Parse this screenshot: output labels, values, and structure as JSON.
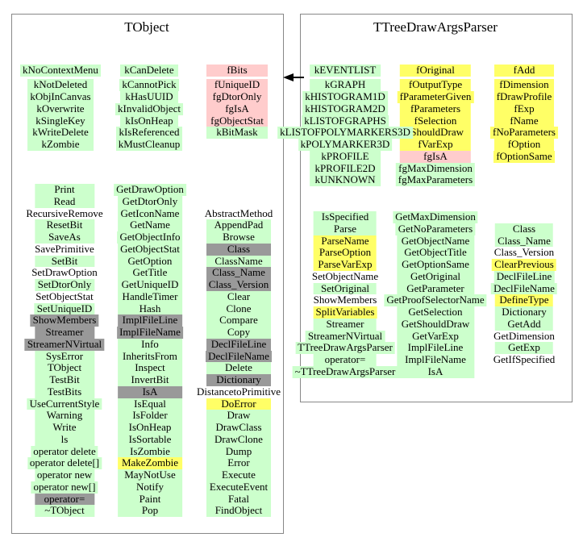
{
  "colors": {
    "green": "#ccffcc",
    "yellow": "#ffff66",
    "pink": "#ffcccc",
    "gray": "#999999",
    "none": "transparent"
  },
  "classes": [
    {
      "title": "TObject",
      "columns": [
        {
          "name": "enum-constants-1",
          "items": [
            [
              "kNoContextMenu",
              "green"
            ],
            [
              "kNotDeleted",
              "green"
            ],
            [
              "kObjInCanvas",
              "green"
            ],
            [
              "kOverwrite",
              "green"
            ],
            [
              "kSingleKey",
              "green"
            ],
            [
              "kWriteDelete",
              "green"
            ],
            [
              "kZombie",
              "green"
            ]
          ]
        },
        {
          "name": "enum-constants-2",
          "items": [
            [
              "kCanDelete",
              "green"
            ],
            [
              "kCannotPick",
              "green"
            ],
            [
              "kHasUUID",
              "green"
            ],
            [
              "kInvalidObject",
              "green"
            ],
            [
              "kIsOnHeap",
              "green"
            ],
            [
              "kIsReferenced",
              "green"
            ],
            [
              "kMustCleanup",
              "green"
            ]
          ]
        },
        {
          "name": "data-members",
          "items": [
            [
              "fBits",
              "pink"
            ],
            [
              "fUniqueID",
              "pink"
            ],
            [
              "fgDtorOnly",
              "pink"
            ],
            [
              "fgIsA",
              "pink"
            ],
            [
              "fgObjectStat",
              "pink"
            ],
            [
              "kBitMask",
              "green"
            ]
          ]
        },
        {
          "name": "methods-1",
          "items": [
            [
              "Print",
              "green"
            ],
            [
              "Read",
              "green"
            ],
            [
              "RecursiveRemove",
              "none"
            ],
            [
              "ResetBit",
              "green"
            ],
            [
              "SaveAs",
              "green"
            ],
            [
              "SavePrimitive",
              "none"
            ],
            [
              "SetBit",
              "green"
            ],
            [
              "SetDrawOption",
              "none"
            ],
            [
              "SetDtorOnly",
              "green"
            ],
            [
              "SetObjectStat",
              "none"
            ],
            [
              "SetUniqueID",
              "green"
            ],
            [
              "ShowMembers",
              "gray"
            ],
            [
              "Streamer",
              "gray"
            ],
            [
              "StreamerNVirtual",
              "gray"
            ],
            [
              "SysError",
              "green"
            ],
            [
              "TObject",
              "green"
            ],
            [
              "TestBit",
              "green"
            ],
            [
              "TestBits",
              "green"
            ],
            [
              "UseCurrentStyle",
              "green"
            ],
            [
              "Warning",
              "green"
            ],
            [
              "Write",
              "green"
            ],
            [
              "ls",
              "green"
            ],
            [
              "operator delete",
              "green"
            ],
            [
              "operator delete[]",
              "green"
            ],
            [
              "operator new",
              "green"
            ],
            [
              "operator new[]",
              "green"
            ],
            [
              "operator=",
              "gray"
            ],
            [
              "~TObject",
              "green"
            ]
          ]
        },
        {
          "name": "methods-2",
          "items": [
            [
              "GetDrawOption",
              "green"
            ],
            [
              "GetDtorOnly",
              "green"
            ],
            [
              "GetIconName",
              "green"
            ],
            [
              "GetName",
              "green"
            ],
            [
              "GetObjectInfo",
              "green"
            ],
            [
              "GetObjectStat",
              "green"
            ],
            [
              "GetOption",
              "green"
            ],
            [
              "GetTitle",
              "green"
            ],
            [
              "GetUniqueID",
              "green"
            ],
            [
              "HandleTimer",
              "green"
            ],
            [
              "Hash",
              "green"
            ],
            [
              "ImplFileLine",
              "gray"
            ],
            [
              "ImplFileName",
              "gray"
            ],
            [
              "Info",
              "green"
            ],
            [
              "InheritsFrom",
              "green"
            ],
            [
              "Inspect",
              "green"
            ],
            [
              "InvertBit",
              "green"
            ],
            [
              "IsA",
              "gray"
            ],
            [
              "IsEqual",
              "green"
            ],
            [
              "IsFolder",
              "green"
            ],
            [
              "IsOnHeap",
              "green"
            ],
            [
              "IsSortable",
              "green"
            ],
            [
              "IsZombie",
              "green"
            ],
            [
              "MakeZombie",
              "yellow"
            ],
            [
              "MayNotUse",
              "green"
            ],
            [
              "Notify",
              "green"
            ],
            [
              "Paint",
              "green"
            ],
            [
              "Pop",
              "green"
            ]
          ]
        },
        {
          "name": "methods-3",
          "items": [
            [
              "AbstractMethod",
              "none"
            ],
            [
              "AppendPad",
              "green"
            ],
            [
              "Browse",
              "green"
            ],
            [
              "Class",
              "gray"
            ],
            [
              "ClassName",
              "green"
            ],
            [
              "Class_Name",
              "gray"
            ],
            [
              "Class_Version",
              "gray"
            ],
            [
              "Clear",
              "green"
            ],
            [
              "Clone",
              "green"
            ],
            [
              "Compare",
              "green"
            ],
            [
              "Copy",
              "green"
            ],
            [
              "DeclFileLine",
              "gray"
            ],
            [
              "DeclFileName",
              "gray"
            ],
            [
              "Delete",
              "green"
            ],
            [
              "Dictionary",
              "gray"
            ],
            [
              "DistancetoPrimitive",
              "none"
            ],
            [
              "DoError",
              "yellow"
            ],
            [
              "Draw",
              "green"
            ],
            [
              "DrawClass",
              "green"
            ],
            [
              "DrawClone",
              "green"
            ],
            [
              "Dump",
              "green"
            ],
            [
              "Error",
              "green"
            ],
            [
              "Execute",
              "green"
            ],
            [
              "ExecuteEvent",
              "green"
            ],
            [
              "Fatal",
              "green"
            ],
            [
              "FindObject",
              "green"
            ]
          ]
        }
      ]
    },
    {
      "title": "TTreeDrawArgsParser",
      "columns": [
        {
          "name": "enum-constants",
          "items": [
            [
              "kEVENTLIST",
              "green"
            ],
            [
              "kGRAPH",
              "green"
            ],
            [
              "kHISTOGRAM1D",
              "green"
            ],
            [
              "kHISTOGRAM2D",
              "green"
            ],
            [
              "kLISTOFGRAPHS",
              "green"
            ],
            [
              "kLISTOFPOLYMARKERS3D",
              "green"
            ],
            [
              "kPOLYMARKER3D",
              "green"
            ],
            [
              "kPROFILE",
              "green"
            ],
            [
              "kPROFILE2D",
              "green"
            ],
            [
              "kUNKNOWN",
              "green"
            ]
          ]
        },
        {
          "name": "data-members-1",
          "items": [
            [
              "fOriginal",
              "yellow"
            ],
            [
              "fOutputType",
              "yellow"
            ],
            [
              "fParameterGiven",
              "yellow"
            ],
            [
              "fParameters",
              "yellow"
            ],
            [
              "fSelection",
              "yellow"
            ],
            [
              "fShouldDraw",
              "yellow"
            ],
            [
              "fVarExp",
              "yellow"
            ],
            [
              "fgIsA",
              "pink"
            ],
            [
              "fgMaxDimension",
              "green"
            ],
            [
              "fgMaxParameters",
              "green"
            ]
          ]
        },
        {
          "name": "data-members-2",
          "items": [
            [
              "fAdd",
              "yellow"
            ],
            [
              "fDimension",
              "yellow"
            ],
            [
              "fDrawProfile",
              "yellow"
            ],
            [
              "fExp",
              "yellow"
            ],
            [
              "fName",
              "yellow"
            ],
            [
              "fNoParameters",
              "yellow"
            ],
            [
              "fOption",
              "yellow"
            ],
            [
              "fOptionSame",
              "yellow"
            ]
          ]
        },
        {
          "name": "methods-1",
          "items": [
            [
              "IsSpecified",
              "green"
            ],
            [
              "Parse",
              "green"
            ],
            [
              "ParseName",
              "yellow"
            ],
            [
              "ParseOption",
              "yellow"
            ],
            [
              "ParseVarExp",
              "yellow"
            ],
            [
              "SetObjectName",
              "none"
            ],
            [
              "SetOriginal",
              "green"
            ],
            [
              "ShowMembers",
              "none"
            ],
            [
              "SplitVariables",
              "yellow"
            ],
            [
              "Streamer",
              "green"
            ],
            [
              "StreamerNVirtual",
              "green"
            ],
            [
              "TTreeDrawArgsParser",
              "green"
            ],
            [
              "operator=",
              "green"
            ],
            [
              "~TTreeDrawArgsParser",
              "green"
            ]
          ]
        },
        {
          "name": "methods-2",
          "items": [
            [
              "GetMaxDimension",
              "green"
            ],
            [
              "GetNoParameters",
              "green"
            ],
            [
              "GetObjectName",
              "green"
            ],
            [
              "GetObjectTitle",
              "green"
            ],
            [
              "GetOptionSame",
              "green"
            ],
            [
              "GetOriginal",
              "green"
            ],
            [
              "GetParameter",
              "green"
            ],
            [
              "GetProofSelectorName",
              "green"
            ],
            [
              "GetSelection",
              "green"
            ],
            [
              "GetShouldDraw",
              "green"
            ],
            [
              "GetVarExp",
              "green"
            ],
            [
              "ImplFileLine",
              "green"
            ],
            [
              "ImplFileName",
              "green"
            ],
            [
              "IsA",
              "green"
            ]
          ]
        },
        {
          "name": "methods-3",
          "items": [
            [
              "Class",
              "green"
            ],
            [
              "Class_Name",
              "green"
            ],
            [
              "Class_Version",
              "none"
            ],
            [
              "ClearPrevious",
              "yellow"
            ],
            [
              "DeclFileLine",
              "green"
            ],
            [
              "DeclFileName",
              "green"
            ],
            [
              "DefineType",
              "yellow"
            ],
            [
              "Dictionary",
              "green"
            ],
            [
              "GetAdd",
              "green"
            ],
            [
              "GetDimension",
              "none"
            ],
            [
              "GetExp",
              "green"
            ],
            [
              "GetIfSpecified",
              "none"
            ]
          ]
        }
      ]
    }
  ]
}
